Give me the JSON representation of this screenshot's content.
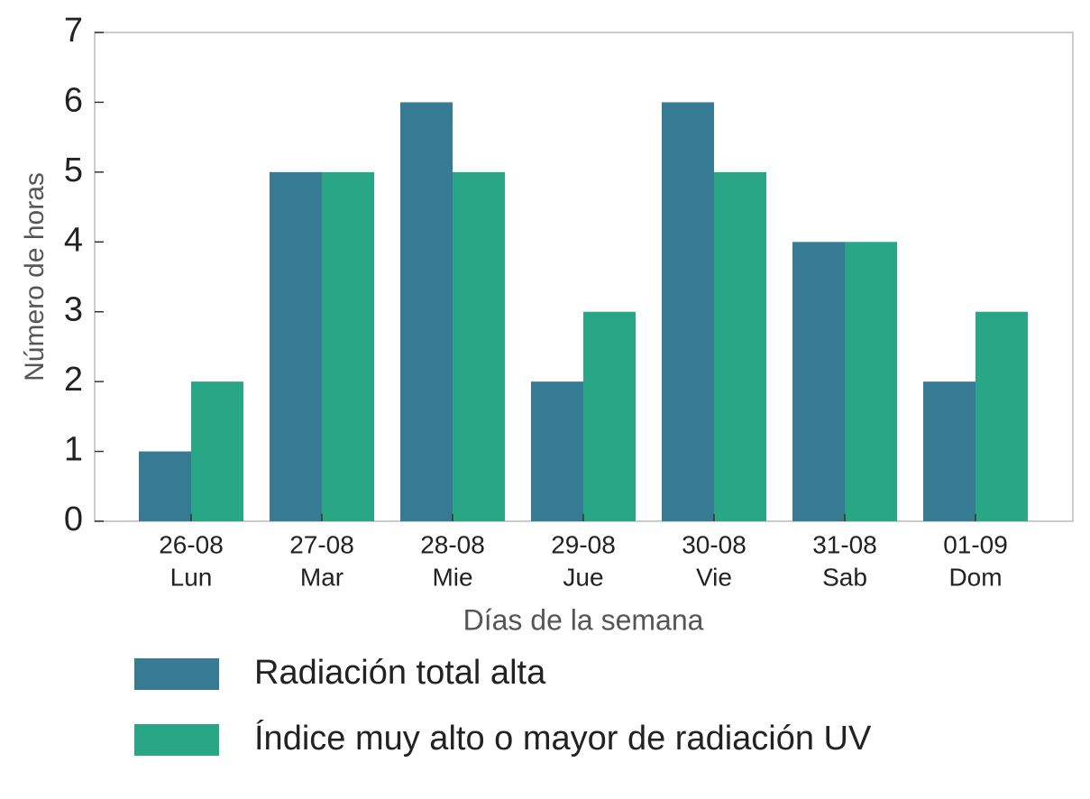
{
  "chart_data": {
    "type": "bar",
    "xlabel": "Días de la semana",
    "ylabel": "Número de horas",
    "categories": [
      [
        "26-08",
        "Lun"
      ],
      [
        "27-08",
        "Mar"
      ],
      [
        "28-08",
        "Mie"
      ],
      [
        "29-08",
        "Jue"
      ],
      [
        "30-08",
        "Vie"
      ],
      [
        "31-08",
        "Sab"
      ],
      [
        "01-09",
        "Dom"
      ]
    ],
    "series": [
      {
        "name": "Radiación total alta",
        "color": "#377a93",
        "values": [
          1,
          5,
          6,
          2,
          6,
          4,
          2
        ]
      },
      {
        "name": "Índice muy alto o mayor de radiación UV",
        "color": "#28a685",
        "values": [
          2,
          5,
          5,
          3,
          5,
          4,
          3
        ]
      }
    ],
    "ylim": [
      0,
      7
    ],
    "yticks": [
      0,
      1,
      2,
      3,
      4,
      5,
      6,
      7
    ],
    "grid": false,
    "legend": "bottom"
  }
}
